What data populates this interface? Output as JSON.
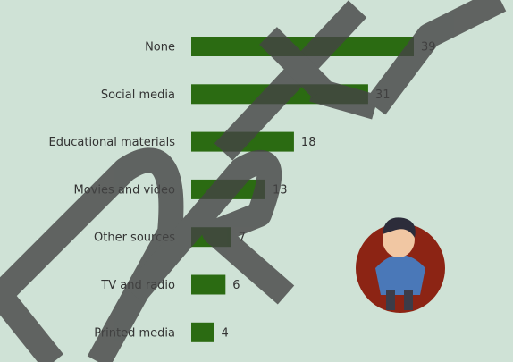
{
  "chart_data": {
    "type": "bar",
    "orientation": "horizontal",
    "categories": [
      "None",
      "Social media",
      "Educational materials",
      "Movies and video",
      "Other sources",
      "TV and radio",
      "Printed media"
    ],
    "values": [
      39,
      31,
      18,
      13,
      7,
      6,
      4
    ],
    "color": "#2b6b12"
  }
}
